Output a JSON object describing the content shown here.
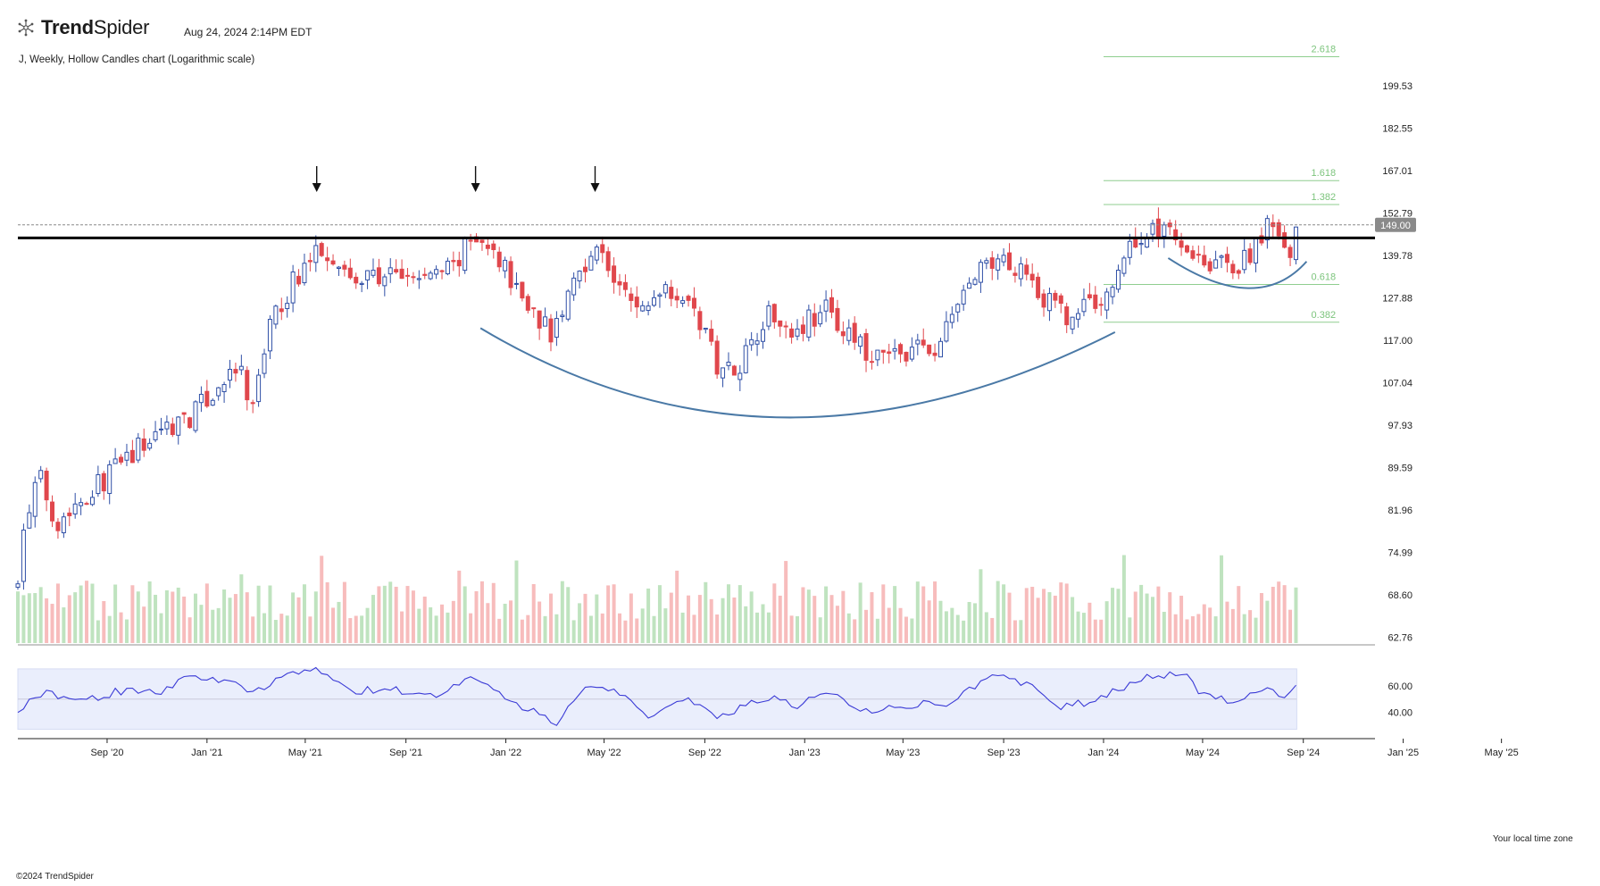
{
  "header": {
    "brand": "TrendSpider",
    "brand_bold": "Trend",
    "brand_light": "Spider",
    "timestamp": "Aug 24, 2024 2:14PM EDT",
    "description": "J, Weekly, Hollow Candles chart (Logarithmic scale)"
  },
  "footer": {
    "copyright": "©2024 TrendSpider",
    "timezone": "Your local time zone"
  },
  "colors": {
    "up": "#2f4fa6",
    "down": "#e0474c",
    "vol_up": "#bfe3bf",
    "vol_down": "#f7bcbc",
    "fib": "#8fce8f",
    "fib_text": "#7cc47c",
    "curve": "#4a79a6",
    "rsi_line": "#3a3ad6",
    "rsi_band": "#eaeefc",
    "resistance": "#000000"
  },
  "chart_data": {
    "type": "candlestick",
    "symbol": "J",
    "interval": "Weekly",
    "scale": "log",
    "ylim": [
      62,
      230
    ],
    "xlim": [
      "2020-05-15",
      "2025-07-20"
    ],
    "price_ticks": [
      "199.53",
      "182.55",
      "167.01",
      "152.79",
      "139.78",
      "127.88",
      "117.00",
      "107.04",
      "97.93",
      "89.59",
      "81.96",
      "74.99",
      "68.60",
      "62.76"
    ],
    "time_ticks": [
      {
        "label": "Sep '20",
        "date": "2020-09-01"
      },
      {
        "label": "Jan '21",
        "date": "2021-01-01"
      },
      {
        "label": "May '21",
        "date": "2021-05-01"
      },
      {
        "label": "Sep '21",
        "date": "2021-09-01"
      },
      {
        "label": "Jan '22",
        "date": "2022-01-01"
      },
      {
        "label": "May '22",
        "date": "2022-05-01"
      },
      {
        "label": "Sep '22",
        "date": "2022-09-01"
      },
      {
        "label": "Jan '23",
        "date": "2023-01-01"
      },
      {
        "label": "May '23",
        "date": "2023-05-01"
      },
      {
        "label": "Sep '23",
        "date": "2023-09-01"
      },
      {
        "label": "Jan '24",
        "date": "2024-01-01"
      },
      {
        "label": "May '24",
        "date": "2024-05-01"
      },
      {
        "label": "Sep '24",
        "date": "2024-09-01"
      },
      {
        "label": "Jan '25",
        "date": "2025-01-01"
      },
      {
        "label": "May '25",
        "date": "2025-05-01"
      }
    ],
    "last_price": "149.00",
    "resistance_level": 145,
    "fib_levels": [
      {
        "label": "2.618",
        "price": 212
      },
      {
        "label": "1.618",
        "price": 163.5
      },
      {
        "label": "1.382",
        "price": 155.5
      },
      {
        "label": "0.618",
        "price": 131.5
      },
      {
        "label": "0.382",
        "price": 121.5
      }
    ],
    "fib_range": [
      "2024-01-01",
      "2024-10-15"
    ],
    "arrows": [
      "2021-05-15",
      "2021-11-25",
      "2022-04-20"
    ],
    "cup": {
      "start": [
        "2021-12-01",
        120
      ],
      "bottom": [
        "2022-12-10",
        99.5
      ],
      "end": [
        "2024-01-15",
        119
      ]
    },
    "handle": {
      "start": [
        "2024-03-20",
        139
      ],
      "bottom": [
        "2024-06-25",
        130.5
      ],
      "end": [
        "2024-09-05",
        138
      ]
    },
    "price_anchors": [
      [
        "2020-05-15",
        72
      ],
      [
        "2020-05-25",
        80
      ],
      [
        "2020-06-10",
        88
      ],
      [
        "2020-07-01",
        80
      ],
      [
        "2020-08-01",
        84
      ],
      [
        "2020-09-01",
        88
      ],
      [
        "2020-10-15",
        94
      ],
      [
        "2020-11-15",
        98
      ],
      [
        "2020-12-15",
        100
      ],
      [
        "2021-01-15",
        106
      ],
      [
        "2021-02-10",
        110
      ],
      [
        "2021-02-25",
        100
      ],
      [
        "2021-03-15",
        118
      ],
      [
        "2021-04-10",
        130
      ],
      [
        "2021-05-01",
        137
      ],
      [
        "2021-05-20",
        142
      ],
      [
        "2021-06-10",
        140
      ],
      [
        "2021-06-25",
        132
      ],
      [
        "2021-08-01",
        134
      ],
      [
        "2021-09-15",
        133
      ],
      [
        "2021-10-25",
        136
      ],
      [
        "2021-11-20",
        144
      ],
      [
        "2021-12-20",
        140
      ],
      [
        "2022-01-25",
        127
      ],
      [
        "2022-03-01",
        118
      ],
      [
        "2022-03-25",
        133
      ],
      [
        "2022-04-20",
        143
      ],
      [
        "2022-05-20",
        130
      ],
      [
        "2022-06-15",
        124
      ],
      [
        "2022-07-15",
        132
      ],
      [
        "2022-08-10",
        128
      ],
      [
        "2022-09-20",
        110
      ],
      [
        "2022-10-15",
        112
      ],
      [
        "2022-11-15",
        124
      ],
      [
        "2022-12-20",
        120
      ],
      [
        "2023-01-25",
        125
      ],
      [
        "2023-02-25",
        118
      ],
      [
        "2023-03-25",
        112
      ],
      [
        "2023-05-10",
        115
      ],
      [
        "2023-06-10",
        114
      ],
      [
        "2023-07-20",
        132
      ],
      [
        "2023-08-25",
        138
      ],
      [
        "2023-09-25",
        137
      ],
      [
        "2023-10-20",
        128
      ],
      [
        "2023-11-20",
        122
      ],
      [
        "2023-12-10",
        126
      ],
      [
        "2024-01-05",
        128
      ],
      [
        "2024-02-01",
        143
      ],
      [
        "2024-02-20",
        145
      ],
      [
        "2024-03-20",
        150
      ],
      [
        "2024-04-05",
        144
      ],
      [
        "2024-04-25",
        140
      ],
      [
        "2024-05-20",
        137
      ],
      [
        "2024-06-10",
        136
      ],
      [
        "2024-07-01",
        140
      ],
      [
        "2024-07-15",
        149
      ],
      [
        "2024-08-01",
        145
      ],
      [
        "2024-08-10",
        138
      ],
      [
        "2024-08-24",
        149
      ]
    ],
    "rsi": {
      "ticks": [
        "60.00",
        "40.00"
      ],
      "ylim": [
        25,
        80
      ],
      "band": [
        30,
        70
      ],
      "midline": 50,
      "anchors": [
        [
          "2020-05-15",
          41
        ],
        [
          "2020-06-15",
          55
        ],
        [
          "2020-08-01",
          48
        ],
        [
          "2020-09-15",
          56
        ],
        [
          "2020-11-01",
          54
        ],
        [
          "2020-12-15",
          68
        ],
        [
          "2021-02-01",
          64
        ],
        [
          "2021-02-20",
          52
        ],
        [
          "2021-04-15",
          70
        ],
        [
          "2021-05-25",
          72
        ],
        [
          "2021-06-20",
          56
        ],
        [
          "2021-08-15",
          58
        ],
        [
          "2021-10-01",
          52
        ],
        [
          "2021-11-20",
          66
        ],
        [
          "2022-01-15",
          46
        ],
        [
          "2022-03-05",
          32
        ],
        [
          "2022-04-15",
          62
        ],
        [
          "2022-05-25",
          52
        ],
        [
          "2022-06-25",
          38
        ],
        [
          "2022-08-01",
          52
        ],
        [
          "2022-09-20",
          36
        ],
        [
          "2022-11-15",
          52
        ],
        [
          "2022-12-25",
          44
        ],
        [
          "2023-01-25",
          56
        ],
        [
          "2023-03-20",
          40
        ],
        [
          "2023-05-15",
          46
        ],
        [
          "2023-06-25",
          46
        ],
        [
          "2023-08-20",
          68
        ],
        [
          "2023-10-01",
          60
        ],
        [
          "2023-11-10",
          44
        ],
        [
          "2023-12-15",
          48
        ],
        [
          "2024-02-25",
          67
        ],
        [
          "2024-04-10",
          70
        ],
        [
          "2024-04-25",
          56
        ],
        [
          "2024-06-05",
          48
        ],
        [
          "2024-07-15",
          59
        ],
        [
          "2024-08-05",
          50
        ],
        [
          "2024-08-24",
          59
        ]
      ]
    }
  }
}
